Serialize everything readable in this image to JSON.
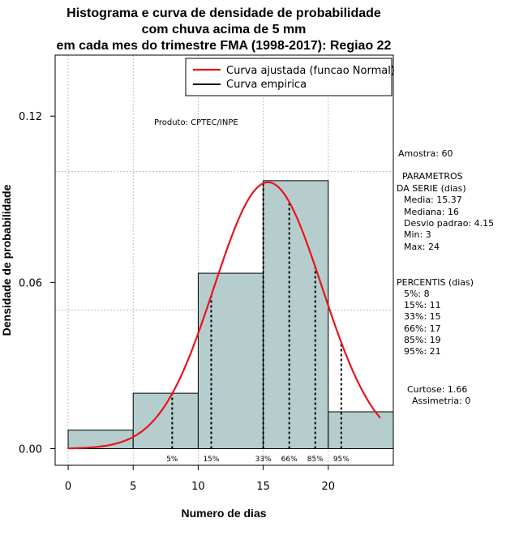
{
  "chart_data": {
    "type": "bar",
    "title": [
      "Histograma e curva de densidade de probabilidade",
      "com chuva acima de 5 mm",
      "em cada mes do trimestre FMA (1998-2017): Regiao 22"
    ],
    "xlabel": "Numero de dias",
    "ylabel": "Densidade de probabilidade",
    "xlim": [
      -1,
      25
    ],
    "ylim": [
      -0.006,
      0.142
    ],
    "x_ticks": [
      0,
      5,
      10,
      15,
      20
    ],
    "y_ticks": [
      0.0,
      0.06,
      0.12
    ],
    "y_tick_labels": [
      "0.00",
      "0.06",
      "0.12"
    ],
    "bins": [
      {
        "x0": 0,
        "x1": 5,
        "density": 0.0067
      },
      {
        "x0": 5,
        "x1": 10,
        "density": 0.02
      },
      {
        "x0": 10,
        "x1": 15,
        "density": 0.0633
      },
      {
        "x0": 15,
        "x1": 20,
        "density": 0.0967
      },
      {
        "x0": 20,
        "x1": 25,
        "density": 0.0133
      }
    ],
    "normal_curve": {
      "name": "Curva ajustada (funcao Normal)",
      "mean": 15.37,
      "sd": 4.15,
      "x_from": 0,
      "x_to": 24,
      "color": "#e8141c"
    },
    "empirical_curve": {
      "name": "Curva empirica",
      "color": "#000000"
    },
    "percentiles": [
      {
        "label": "5%",
        "x": 8
      },
      {
        "label": "15%",
        "x": 11
      },
      {
        "label": "33%",
        "x": 15
      },
      {
        "label": "66%",
        "x": 17
      },
      {
        "label": "85%",
        "x": 19
      },
      {
        "label": "95%",
        "x": 21
      }
    ],
    "grid": true,
    "grid_x": [
      0,
      5,
      10,
      15,
      20
    ],
    "grid_y": [
      0.05,
      0.1
    ],
    "legend_position": "top-right",
    "colors": {
      "bar_fill": "#b6cdcd",
      "bar_stroke": "#000000",
      "grid": "#bebebe"
    }
  },
  "annotations": {
    "product": "Produto: CPTEC/INPE",
    "amostra": "Amostra: 60",
    "parametros_title_1": "PARAMETROS",
    "parametros_title_2": "DA SERIE (dias)",
    "media": "Media: 15.37",
    "mediana": "Mediana: 16",
    "desvio": "Desvio padrao: 4.15",
    "min": "Min: 3",
    "max": "Max: 24",
    "percentis_title": "PERCENTIS (dias)",
    "p5": "5%: 8",
    "p15": "15%: 11",
    "p33": "33%: 15",
    "p66": "66%: 17",
    "p85": "85%: 19",
    "p95": "95%: 21",
    "curtose": "Curtose: 1.66",
    "assimetria": "Assimetria: 0"
  }
}
